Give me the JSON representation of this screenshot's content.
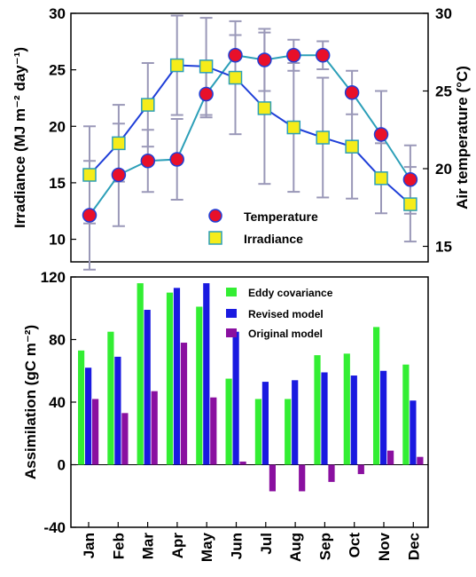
{
  "top": {
    "ylabel_left": "Irradiance (MJ m⁻² day⁻¹)",
    "ylabel_right": "Air temperature (°C)",
    "ylim_left": [
      8,
      30
    ],
    "ylim_right": [
      14,
      30
    ],
    "left_ticks": [
      "10",
      "15",
      "20",
      "25",
      "30"
    ],
    "right_ticks": [
      "15",
      "20",
      "25",
      "30"
    ],
    "legend": [
      {
        "label": "Temperature",
        "marker": "circle"
      },
      {
        "label": "Irradiance",
        "marker": "square"
      }
    ]
  },
  "bottom": {
    "ylabel": "Assimilation (gC m⁻²)",
    "ylim": [
      -40,
      120
    ],
    "ticks": [
      "-40",
      "0",
      "40",
      "80",
      "120"
    ],
    "legend": [
      {
        "label": "Eddy covariance"
      },
      {
        "label": "Revised model"
      },
      {
        "label": "Original model"
      }
    ]
  },
  "months": [
    "Jan",
    "Feb",
    "Mar",
    "Apr",
    "May",
    "Jun",
    "Jul",
    "Aug",
    "Sep",
    "Oct",
    "Nov",
    "Dec"
  ],
  "colors": {
    "temp_line": "#2c9fb8",
    "temp_marker": "#e8102a",
    "irr_line": "#1f3fd8",
    "irr_marker": "#f5ec1a",
    "errorbar": "#9a98b8",
    "eddy": "#33ee33",
    "revised": "#1a1ae0",
    "original": "#8a10a0"
  },
  "chart_data": [
    {
      "type": "line",
      "x": [
        "Jan",
        "Feb",
        "Mar",
        "Apr",
        "May",
        "Jun",
        "Jul",
        "Aug",
        "Sep",
        "Oct",
        "Nov",
        "Dec"
      ],
      "series": [
        {
          "name": "Temperature",
          "axis": "right",
          "values": [
            17.0,
            19.6,
            20.5,
            20.6,
            24.8,
            27.3,
            27.0,
            27.3,
            27.3,
            24.9,
            22.2,
            19.3
          ],
          "error": [
            3.5,
            3.3,
            2.0,
            2.6,
            1.5,
            1.3,
            2.0,
            1.0,
            0.9,
            1.4,
            2.8,
            2.2
          ]
        },
        {
          "name": "Irradiance",
          "axis": "left",
          "values": [
            15.7,
            18.5,
            21.9,
            25.4,
            25.3,
            24.3,
            21.6,
            19.9,
            19.0,
            18.2,
            15.4,
            13.1
          ],
          "error": [
            4.3,
            3.4,
            3.7,
            4.4,
            4.3,
            5.0,
            6.7,
            5.7,
            5.3,
            4.6,
            3.1,
            3.3
          ]
        }
      ]
    },
    {
      "type": "bar",
      "categories": [
        "Jan",
        "Feb",
        "Mar",
        "Apr",
        "May",
        "Jun",
        "Jul",
        "Aug",
        "Sep",
        "Oct",
        "Nov",
        "Dec"
      ],
      "series": [
        {
          "name": "Eddy covariance",
          "values": [
            73,
            85,
            116,
            110,
            101,
            55,
            42,
            42,
            70,
            71,
            88,
            64
          ]
        },
        {
          "name": "Revised model",
          "values": [
            62,
            69,
            99,
            113,
            116,
            85,
            53,
            54,
            59,
            57,
            60,
            41
          ]
        },
        {
          "name": "Original model",
          "values": [
            42,
            33,
            47,
            78,
            43,
            2,
            -17,
            -17,
            -11,
            -6,
            9,
            5
          ]
        }
      ]
    }
  ]
}
